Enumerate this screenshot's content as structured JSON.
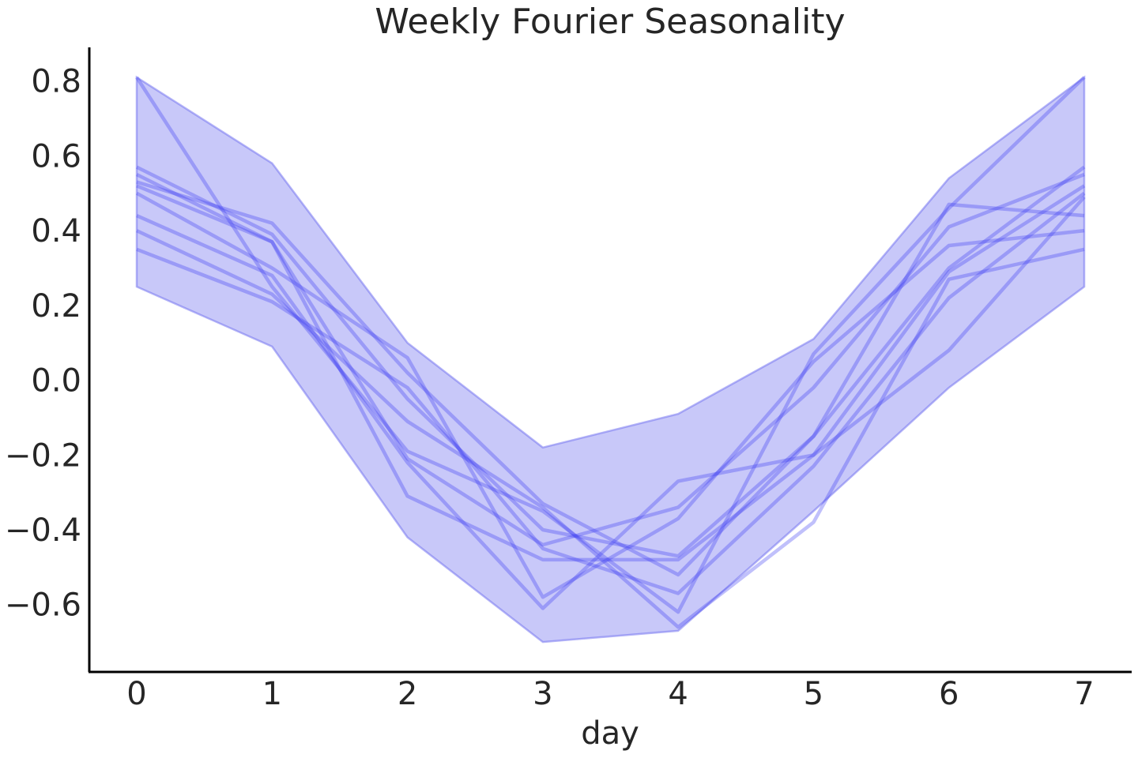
{
  "chart_data": {
    "type": "line",
    "title": "Weekly Fourier Seasonality",
    "xlabel": "day",
    "ylabel": "",
    "xlim": [
      -0.35,
      7.35
    ],
    "ylim": [
      -0.78,
      0.89
    ],
    "grid": false,
    "x": [
      0,
      1,
      2,
      3,
      4,
      5,
      6,
      7
    ],
    "xticks": [
      0,
      1,
      2,
      3,
      4,
      5,
      6,
      7
    ],
    "xtick_labels": [
      "0",
      "1",
      "2",
      "3",
      "4",
      "5",
      "6",
      "7"
    ],
    "yticks": [
      -0.6,
      -0.4,
      -0.2,
      0.0,
      0.2,
      0.4,
      0.6,
      0.8
    ],
    "ytick_labels": [
      "−0.6",
      "−0.4",
      "−0.2",
      "0.0",
      "0.2",
      "0.4",
      "0.6",
      "0.8"
    ],
    "band": {
      "upper": [
        0.81,
        0.58,
        0.1,
        -0.18,
        -0.09,
        0.11,
        0.54,
        0.81
      ],
      "lower": [
        0.25,
        0.09,
        -0.42,
        -0.7,
        -0.67,
        -0.35,
        -0.02,
        0.25
      ],
      "color": "#6b6bf0"
    },
    "line_color": "#3a3af2",
    "series": [
      {
        "values": [
          0.81,
          0.25,
          -0.19,
          -0.35,
          -0.62,
          0.07,
          0.46,
          0.81
        ]
      },
      {
        "values": [
          0.57,
          0.39,
          -0.05,
          -0.4,
          -0.47,
          -0.15,
          0.3,
          0.57
        ]
      },
      {
        "values": [
          0.55,
          0.37,
          -0.21,
          -0.44,
          -0.34,
          -0.02,
          0.41,
          0.55
        ]
      },
      {
        "values": [
          0.53,
          0.42,
          0.02,
          -0.33,
          -0.52,
          -0.15,
          0.47,
          0.44
        ]
      },
      {
        "values": [
          0.5,
          0.3,
          0.06,
          -0.58,
          -0.37,
          0.05,
          0.36,
          0.4
        ]
      },
      {
        "values": [
          0.52,
          0.37,
          -0.31,
          -0.48,
          -0.48,
          -0.2,
          0.29,
          0.52
        ]
      },
      {
        "values": [
          0.44,
          0.28,
          -0.22,
          -0.61,
          -0.27,
          -0.2,
          0.08,
          0.49
        ]
      },
      {
        "values": [
          0.4,
          0.23,
          -0.11,
          -0.34,
          -0.66,
          -0.38,
          0.27,
          0.35
        ]
      },
      {
        "values": [
          0.35,
          0.21,
          -0.02,
          -0.45,
          -0.57,
          -0.23,
          0.22,
          0.5
        ]
      }
    ]
  }
}
